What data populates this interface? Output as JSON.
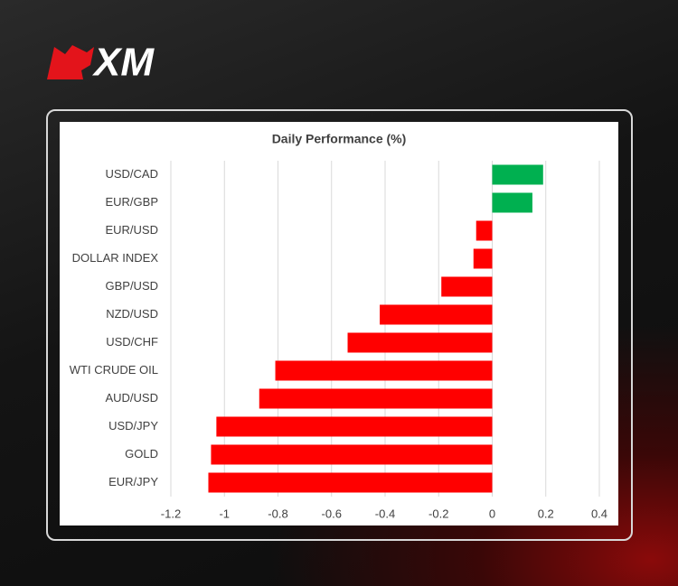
{
  "brand": "XM",
  "chart_data": {
    "type": "hbar",
    "title": "Daily Performance (%)",
    "categories": [
      "USD/CAD",
      "EUR/GBP",
      "EUR/USD",
      "DOLLAR INDEX",
      "GBP/USD",
      "NZD/USD",
      "USD/CHF",
      "WTI CRUDE OIL",
      "AUD/USD",
      "USD/JPY",
      "GOLD",
      "EUR/JPY"
    ],
    "values": [
      0.19,
      0.15,
      -0.06,
      -0.07,
      -0.19,
      -0.42,
      -0.54,
      -0.81,
      -0.87,
      -1.03,
      -1.05,
      -1.06
    ],
    "positive_color": "#00b050",
    "negative_color": "#ff0000",
    "xlim": [
      -1.2,
      0.4
    ],
    "xticks": [
      -1.2,
      -1,
      -0.8,
      -0.6,
      -0.4,
      -0.2,
      0,
      0.2,
      0.4
    ],
    "grid": true
  }
}
